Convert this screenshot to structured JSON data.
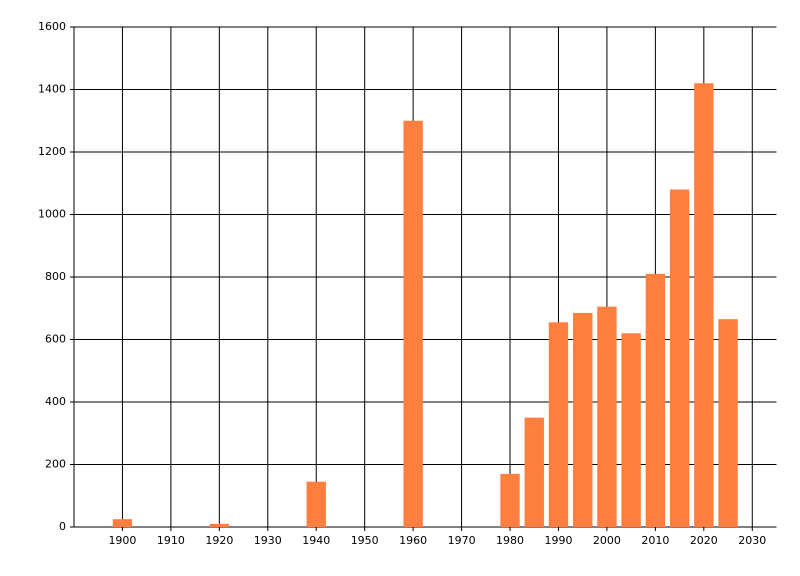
{
  "chart_data": {
    "type": "bar",
    "x": [
      1900,
      1920,
      1940,
      1960,
      1980,
      1985,
      1990,
      1995,
      2000,
      2005,
      2010,
      2015,
      2020,
      2025
    ],
    "values": [
      25,
      10,
      145,
      1300,
      170,
      350,
      655,
      685,
      705,
      620,
      810,
      1080,
      1420,
      665
    ],
    "color": "#ff7f3f",
    "bar_width": 4,
    "xlim": [
      1890,
      2035
    ],
    "xticks": [
      1900,
      1910,
      1920,
      1930,
      1940,
      1950,
      1960,
      1970,
      1980,
      1990,
      2000,
      2010,
      2020,
      2030
    ],
    "ylim": [
      0,
      1600
    ],
    "yticks": [
      0,
      200,
      400,
      600,
      800,
      1000,
      1200,
      1400,
      1600
    ],
    "grid": true
  }
}
